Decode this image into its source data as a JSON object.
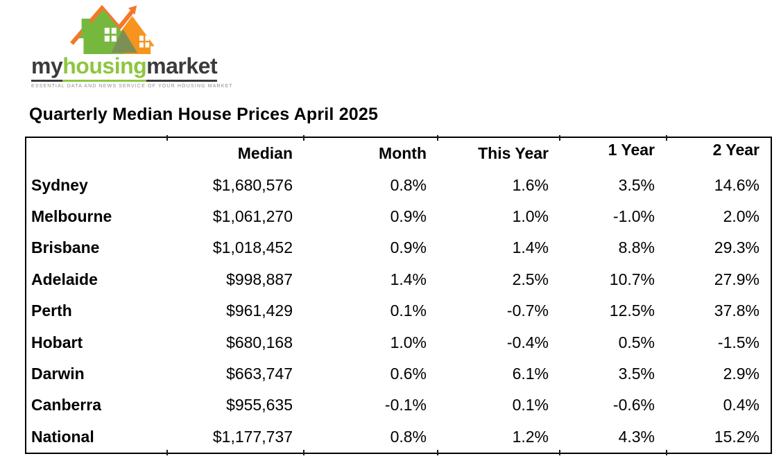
{
  "logo": {
    "brand_part1": "my",
    "brand_part2": "housing",
    "brand_part3": "market",
    "tagline": "ESSENTIAL DATA AND NEWS SERVICE OF YOUR HOUSING MARKET",
    "colors": {
      "house_green": "#76b83e",
      "text_green": "#8dc63f",
      "house_orange": "#f7941e",
      "arrow_orange": "#f4772a",
      "overlap_olive": "#7d8f55",
      "dark": "#3b3b3d",
      "tagline_gray": "#8f8f8f"
    }
  },
  "page_title": "Quarterly Median House Prices April 2025",
  "chart_data": {
    "type": "table",
    "title": "Quarterly Median House Prices April 2025",
    "columns": [
      "",
      "Median",
      "Month",
      "This Year",
      "1 Year",
      "2 Year"
    ],
    "rows": [
      {
        "city": "Sydney",
        "median": "$1,680,576",
        "month": "0.8%",
        "this_year": "1.6%",
        "one_year": "3.5%",
        "two_year": "14.6%"
      },
      {
        "city": "Melbourne",
        "median": "$1,061,270",
        "month": "0.9%",
        "this_year": "1.0%",
        "one_year": "-1.0%",
        "two_year": "2.0%"
      },
      {
        "city": "Brisbane",
        "median": "$1,018,452",
        "month": "0.9%",
        "this_year": "1.4%",
        "one_year": "8.8%",
        "two_year": "29.3%"
      },
      {
        "city": "Adelaide",
        "median": "$998,887",
        "month": "1.4%",
        "this_year": "2.5%",
        "one_year": "10.7%",
        "two_year": "27.9%"
      },
      {
        "city": "Perth",
        "median": "$961,429",
        "month": "0.1%",
        "this_year": "-0.7%",
        "one_year": "12.5%",
        "two_year": "37.8%"
      },
      {
        "city": "Hobart",
        "median": "$680,168",
        "month": "1.0%",
        "this_year": "-0.4%",
        "one_year": "0.5%",
        "two_year": "-1.5%"
      },
      {
        "city": "Darwin",
        "median": "$663,747",
        "month": "0.6%",
        "this_year": "6.1%",
        "one_year": "3.5%",
        "two_year": "2.9%"
      },
      {
        "city": "Canberra",
        "median": "$955,635",
        "month": "-0.1%",
        "this_year": "0.1%",
        "one_year": "-0.6%",
        "two_year": "0.4%"
      },
      {
        "city": "National",
        "median": "$1,177,737",
        "month": "0.8%",
        "this_year": "1.2%",
        "one_year": "4.3%",
        "two_year": "15.2%"
      }
    ]
  }
}
